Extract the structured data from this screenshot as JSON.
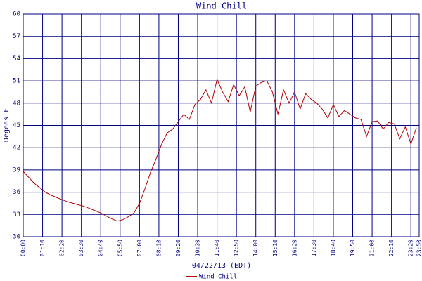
{
  "chart_data": {
    "type": "line",
    "title": "Wind Chill",
    "y_label": "Degees F",
    "x_label": "04/22/13 (EDT)",
    "xlim": [
      "00:00",
      "23:50"
    ],
    "xticks": [
      "00:00",
      "01:10",
      "02:20",
      "03:30",
      "04:40",
      "05:50",
      "07:00",
      "08:10",
      "09:20",
      "10:30",
      "11:40",
      "12:50",
      "14:00",
      "15:10",
      "16:20",
      "17:30",
      "18:40",
      "19:50",
      "21:00",
      "22:10",
      "23:20",
      "23:50"
    ],
    "ylim": [
      30,
      60
    ],
    "yticks": [
      30,
      33,
      36,
      39,
      42,
      45,
      48,
      51,
      54,
      57,
      60
    ],
    "grid": true,
    "x": [
      "00:00",
      "00:20",
      "00:40",
      "01:00",
      "01:20",
      "01:40",
      "02:00",
      "02:20",
      "02:40",
      "03:00",
      "03:20",
      "03:40",
      "04:00",
      "04:20",
      "04:40",
      "05:00",
      "05:20",
      "05:40",
      "06:00",
      "06:20",
      "06:40",
      "07:00",
      "07:20",
      "07:40",
      "08:00",
      "08:20",
      "08:40",
      "09:00",
      "09:20",
      "09:40",
      "10:00",
      "10:20",
      "10:40",
      "11:00",
      "11:20",
      "11:40",
      "12:00",
      "12:20",
      "12:40",
      "13:00",
      "13:20",
      "13:40",
      "14:00",
      "14:20",
      "14:40",
      "15:00",
      "15:20",
      "15:40",
      "16:00",
      "16:20",
      "16:40",
      "17:00",
      "17:20",
      "17:40",
      "18:00",
      "18:20",
      "18:40",
      "19:00",
      "19:20",
      "19:40",
      "20:00",
      "20:20",
      "20:40",
      "21:00",
      "21:20",
      "21:40",
      "22:00",
      "22:20",
      "22:40",
      "23:00",
      "23:20",
      "23:40"
    ],
    "series": [
      {
        "name": "Wind Chill",
        "color": "#b00000",
        "values": [
          38.8,
          38.0,
          37.2,
          36.6,
          36.0,
          35.6,
          35.3,
          35.0,
          34.7,
          34.5,
          34.3,
          34.1,
          33.8,
          33.5,
          33.2,
          32.8,
          32.4,
          32.1,
          32.3,
          32.7,
          33.2,
          34.5,
          36.5,
          38.7,
          40.5,
          42.5,
          44.0,
          44.5,
          45.5,
          46.5,
          45.8,
          47.8,
          48.5,
          49.8,
          48.0,
          51.2,
          49.5,
          48.2,
          50.5,
          49.0,
          50.2,
          46.8,
          50.3,
          50.8,
          51.0,
          49.5,
          46.5,
          49.8,
          48.0,
          49.5,
          47.2,
          49.3,
          48.5,
          48.0,
          47.2,
          46.0,
          47.8,
          46.2,
          47.0,
          46.5,
          46.0,
          45.8,
          43.5,
          45.5,
          45.6,
          44.5,
          45.4,
          45.2,
          43.2,
          44.8,
          42.5,
          44.7
        ]
      }
    ]
  }
}
